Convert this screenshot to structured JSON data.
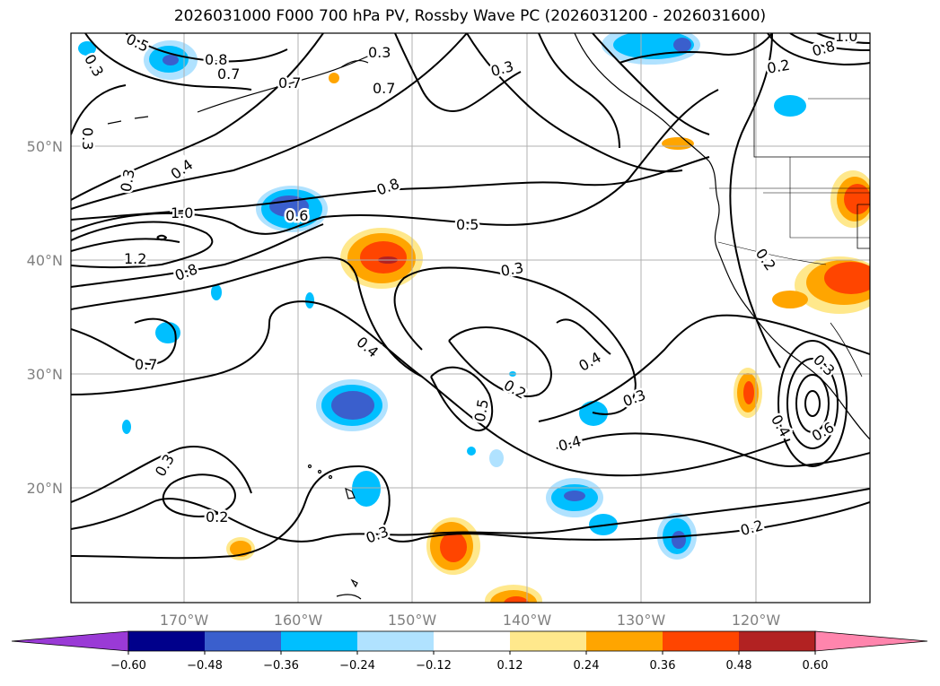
{
  "title": "2026031000 F000 700 hPa PV, Rossby Wave PC (2026031200 - 2026031600)",
  "map": {
    "lon_labels": [
      "170°W",
      "160°W",
      "150°W",
      "140°W",
      "130°W",
      "120°W"
    ],
    "lat_labels": [
      "50°N",
      "40°N",
      "30°N",
      "20°N"
    ],
    "contour_labels": [
      "0.5",
      "0.8",
      "0.7",
      "0.3",
      "0.3",
      "0.7",
      "0.3",
      "0.8",
      "0.3",
      "0.4",
      "0.3",
      "0.7",
      "1.0",
      "0.6",
      "0.5",
      "1.2",
      "0.8",
      "0.3",
      "0.2",
      "0.7",
      "0.4",
      "0.2",
      "0.4",
      "0.5",
      "0.3",
      "0.4",
      "0.4",
      "0.6",
      "0.3",
      "0.2",
      "0.3",
      "0.3",
      "0.2",
      "0.2",
      "0.8",
      "1.0"
    ]
  },
  "colorbar": {
    "colors": [
      "#9a3ad6",
      "#00008b",
      "#3a5fcd",
      "#00bfff",
      "#b0e2ff",
      "#ffffff",
      "#ffe88c",
      "#ffa500",
      "#ff4500",
      "#b22222",
      "#ff85ad"
    ],
    "tick_labels": [
      "−0.60",
      "−0.48",
      "−0.36",
      "−0.24",
      "−0.12",
      "0.12",
      "0.24",
      "0.36",
      "0.48",
      "0.60"
    ]
  }
}
